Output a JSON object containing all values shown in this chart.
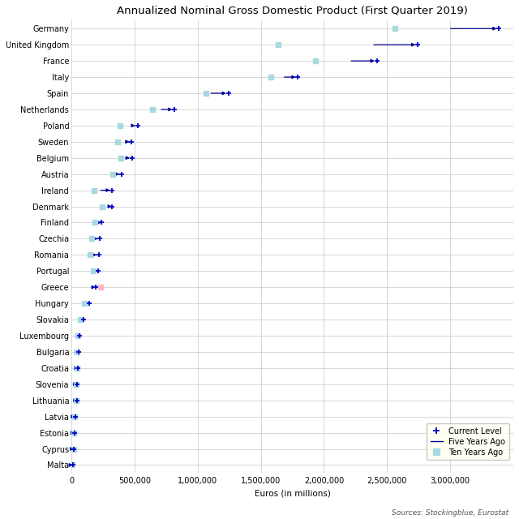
{
  "title": "Annualized Nominal Gross Domestic Product (First Quarter 2019)",
  "xlabel": "Euros (in millions)",
  "source": "Sources: Stockingblue, Eurostat",
  "countries": [
    "Germany",
    "United Kingdom",
    "France",
    "Italy",
    "Spain",
    "Netherlands",
    "Poland",
    "Sweden",
    "Belgium",
    "Austria",
    "Ireland",
    "Denmark",
    "Finland",
    "Czechia",
    "Romania",
    "Portugal",
    "Greece",
    "Hungary",
    "Slovakia",
    "Luxembourg",
    "Bulgaria",
    "Croatia",
    "Slovenia",
    "Lithuania",
    "Latvia",
    "Estonia",
    "Cyprus",
    "Malta"
  ],
  "current": [
    3386000,
    2743000,
    2419000,
    1794000,
    1244000,
    818000,
    524000,
    478000,
    480000,
    399000,
    324000,
    320000,
    237000,
    228000,
    218000,
    213000,
    192000,
    144000,
    96000,
    66000,
    59000,
    54000,
    47000,
    48000,
    30000,
    27000,
    22000,
    13000
  ],
  "five_years_ago": [
    2984000,
    2376000,
    2198000,
    1668000,
    1088000,
    695000,
    478000,
    432000,
    434000,
    362000,
    214000,
    290000,
    216000,
    166000,
    170000,
    182000,
    183000,
    120000,
    83000,
    57000,
    48000,
    46000,
    41000,
    40000,
    26000,
    22000,
    19000,
    10000
  ],
  "ten_years_ago": [
    2560000,
    1640000,
    1934000,
    1577000,
    1065000,
    640000,
    385000,
    368000,
    390000,
    328000,
    179000,
    245000,
    188000,
    159000,
    148000,
    172000,
    233000,
    101000,
    74000,
    52000,
    46000,
    48000,
    38000,
    36000,
    23000,
    19000,
    18000,
    8000
  ],
  "current_color": "#0000CD",
  "line_color": "#00008B",
  "ten_color": "#A8D8E0",
  "greece_ten_color": "#FFB6C1",
  "bg_color": "#FFFFFF",
  "grid_color": "#C8C8C8",
  "legend_bg": "#FFFFF0",
  "xlim": [
    0,
    3500000
  ],
  "xticks": [
    0,
    500000,
    1000000,
    1500000,
    2000000,
    2500000,
    3000000
  ],
  "xtick_labels": [
    "0",
    "500,000",
    "1,000,000",
    "1,500,000",
    "2,000,000",
    "2,500,000",
    "3,000,000"
  ],
  "title_fontsize": 9.5,
  "label_fontsize": 7.5,
  "tick_fontsize": 7,
  "source_fontsize": 6.5
}
